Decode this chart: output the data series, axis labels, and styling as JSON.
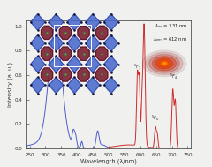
{
  "background_color": "#f0f0ee",
  "plot_bg_color": "#f0f0ee",
  "xlabel": "Wavelength (λ/nm)",
  "ylabel": "Intensity (a. u.)",
  "xlim": [
    240,
    760
  ],
  "ylim": [
    0,
    1.05
  ],
  "xticks": [
    250,
    300,
    350,
    400,
    450,
    500,
    550,
    600,
    650,
    700,
    750
  ],
  "axis_color": "#333333",
  "blue_color": "#4455cc",
  "red_color": "#cc2222",
  "annotation_color": "#222222",
  "lambda_ex": "331 nm",
  "lambda_em": "612 nm",
  "crystal_bg": "#f0f0ee",
  "blue_oct": "#4455bb",
  "dark_red_poly": "#7a2233",
  "green_dot": "#33aa55",
  "inset_border": "#888888"
}
